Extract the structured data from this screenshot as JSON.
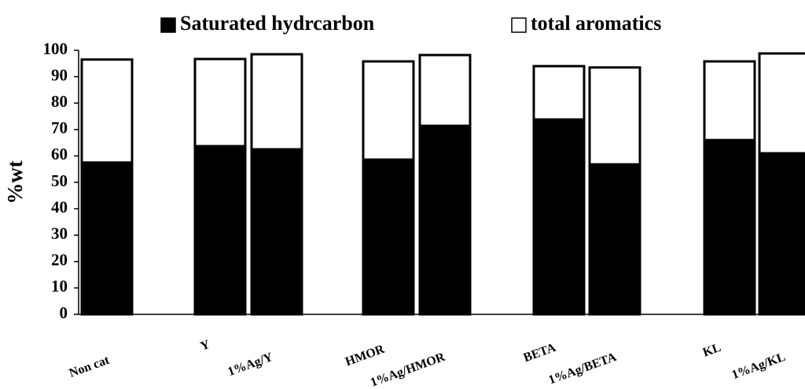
{
  "chart_data": {
    "type": "bar",
    "stacked": true,
    "ylabel": "%wt",
    "categories": [
      "Non cat",
      "Y",
      "1%Ag/Y",
      "HMOR",
      "1%Ag/HMOR",
      "BETA",
      "1%Ag/BETA",
      "KL",
      "1%Ag/KL"
    ],
    "series": [
      {
        "name": "Saturated hydrcarbon",
        "color": "#000000",
        "values": [
          57.5,
          63.7,
          62.5,
          58.6,
          71.4,
          73.8,
          56.8,
          66,
          61
        ]
      },
      {
        "name": "total aromatics",
        "color": "#ffffff",
        "values": [
          39,
          33,
          36,
          37.2,
          26.8,
          20.2,
          36.7,
          29.8,
          37.8
        ]
      }
    ],
    "ylim": [
      0,
      100
    ],
    "yticks": [
      0,
      10,
      20,
      30,
      40,
      50,
      60,
      70,
      80,
      90,
      100
    ]
  }
}
